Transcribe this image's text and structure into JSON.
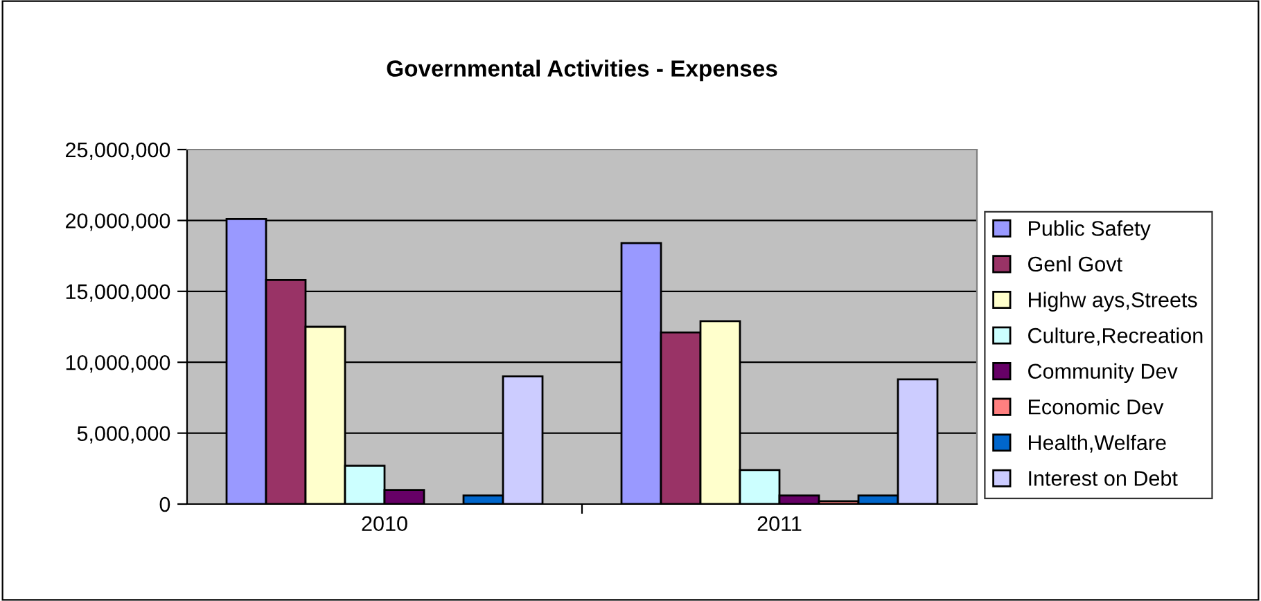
{
  "chart_data": {
    "type": "bar",
    "title": "Governmental Activities - Expenses",
    "categories": [
      "2010",
      "2011"
    ],
    "series": [
      {
        "name": "Public Safety",
        "color": "#9999ff",
        "values": [
          20100000,
          18400000
        ]
      },
      {
        "name": "Genl Govt",
        "color": "#993366",
        "values": [
          15800000,
          12100000
        ]
      },
      {
        "name": "Highw ays,Streets",
        "color": "#ffffcc",
        "values": [
          12500000,
          12900000
        ]
      },
      {
        "name": "Culture,Recreation",
        "color": "#ccffff",
        "values": [
          2700000,
          2400000
        ]
      },
      {
        "name": "Community Dev",
        "color": "#660066",
        "values": [
          1000000,
          600000
        ]
      },
      {
        "name": "Economic Dev",
        "color": "#ff8080",
        "values": [
          null,
          200000
        ]
      },
      {
        "name": "Health,Welfare",
        "color": "#0066cc",
        "values": [
          600000,
          600000
        ]
      },
      {
        "name": "Interest on Debt",
        "color": "#ccccff",
        "values": [
          9000000,
          8800000
        ]
      }
    ],
    "ylim": [
      0,
      25000000
    ],
    "yticks": [
      {
        "value": 0,
        "label": "0"
      },
      {
        "value": 5000000,
        "label": "5,000,000"
      },
      {
        "value": 10000000,
        "label": "10,000,000"
      },
      {
        "value": 15000000,
        "label": "15,000,000"
      },
      {
        "value": 20000000,
        "label": "20,000,000"
      },
      {
        "value": 25000000,
        "label": "25,000,000"
      }
    ],
    "grid": "y",
    "legend": "right"
  }
}
